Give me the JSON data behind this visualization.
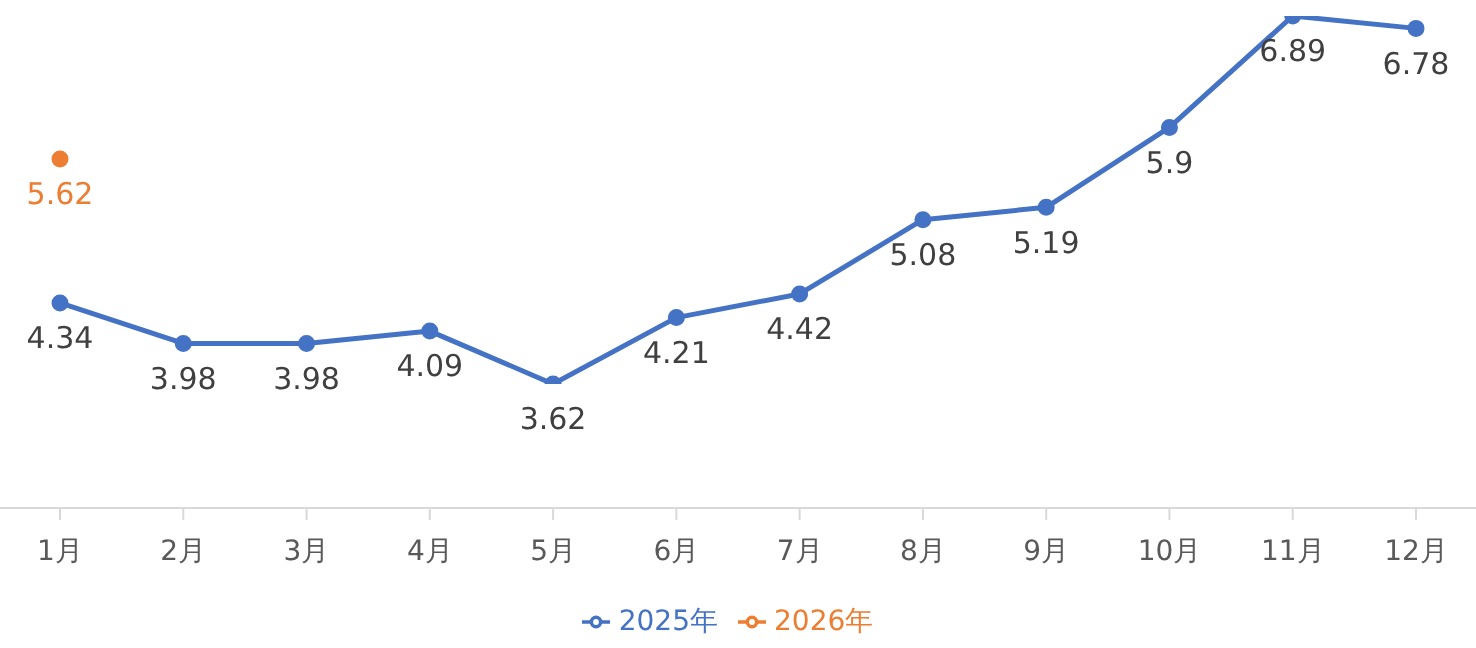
{
  "chart_data": {
    "type": "line",
    "categories": [
      "1月",
      "2月",
      "3月",
      "4月",
      "5月",
      "6月",
      "7月",
      "8月",
      "9月",
      "10月",
      "11月",
      "12月"
    ],
    "series": [
      {
        "name": "2025年",
        "color": "#4472c4",
        "values": [
          4.34,
          3.98,
          3.98,
          4.09,
          3.62,
          4.21,
          4.42,
          5.08,
          5.19,
          5.9,
          6.89,
          6.78
        ]
      },
      {
        "name": "2026年",
        "color": "#ed7d31",
        "values": [
          5.62,
          null,
          null,
          null,
          null,
          null,
          null,
          null,
          null,
          null,
          null,
          null
        ]
      }
    ],
    "tick_labels": "x",
    "data_labels": true,
    "legend": "bottom",
    "marker": "circle",
    "line_style": "solid",
    "grid": false
  }
}
